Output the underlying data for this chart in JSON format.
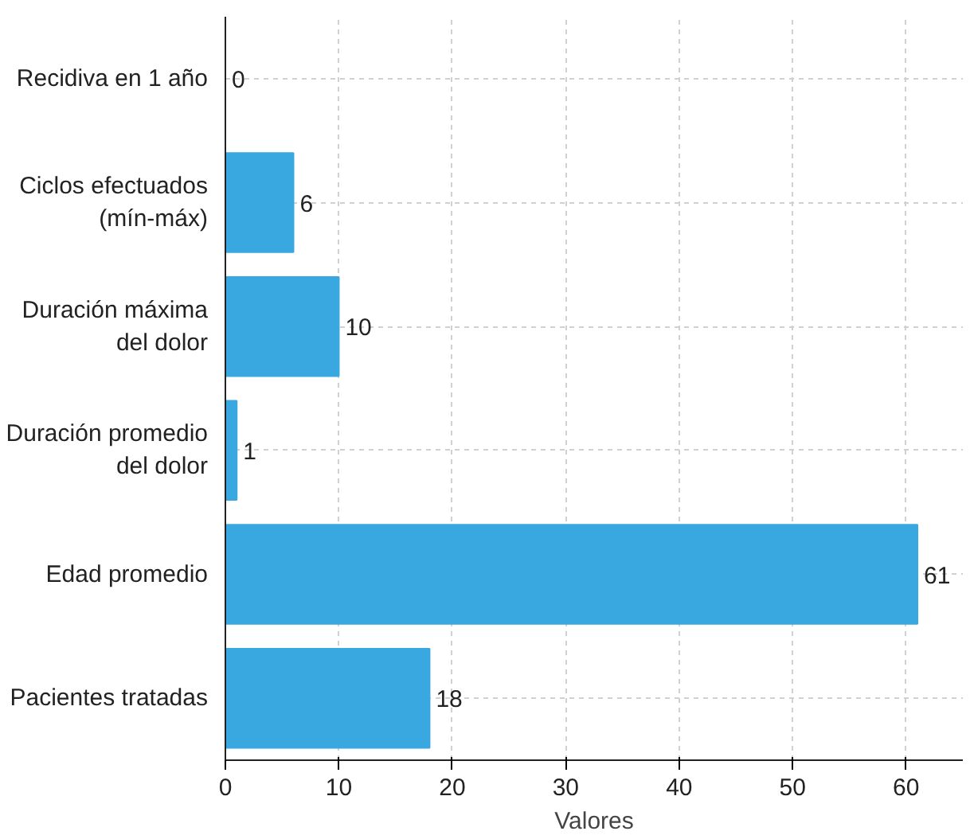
{
  "chart_data": {
    "type": "bar",
    "orientation": "horizontal",
    "xlabel": "Valores",
    "categories": [
      "Recidiva en 1 año",
      "Ciclos efectuados\n(mín-máx)",
      "Duración máxima\ndel dolor",
      "Duración promedio\ndel dolor",
      "Edad promedio",
      "Pacientes tratadas"
    ],
    "values": [
      0,
      6,
      10,
      1,
      61,
      18
    ],
    "color": "#3aa8e0",
    "xlim": [
      0,
      65
    ],
    "xticks": [
      0,
      10,
      20,
      30,
      40,
      50,
      60
    ],
    "grid": true,
    "data_labels": true
  }
}
